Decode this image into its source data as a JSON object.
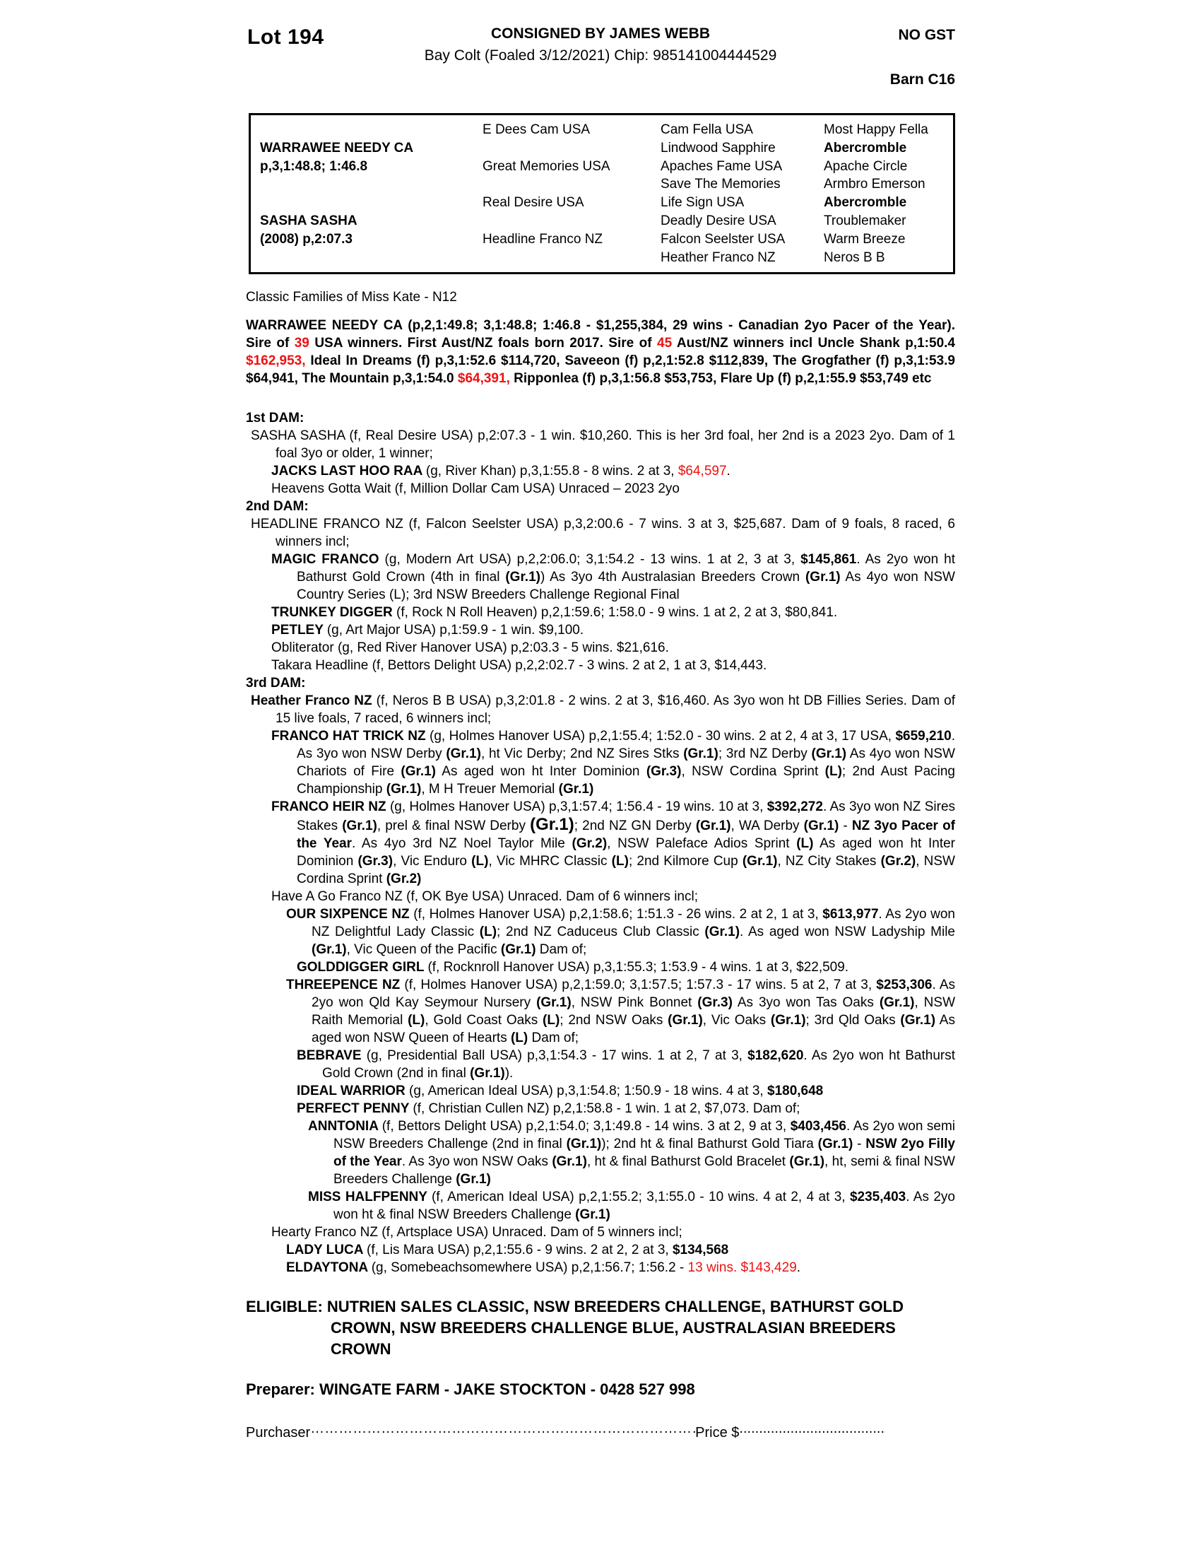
{
  "colors": {
    "red": "#ed1111",
    "text": "#000000",
    "page_bg": "#ffffff"
  },
  "header": {
    "lot": "Lot 194",
    "consigned": "CONSIGNED BY JAMES WEBB",
    "gst": "NO GST",
    "foaled": "Bay Colt (Foaled 3/12/2021) Chip: 985141004444529",
    "barn": "Barn C16"
  },
  "pedigree_table": {
    "sire": {
      "name": "WARRAWEE NEEDY CA",
      "record": "p,3,1:48.8; 1:46.8"
    },
    "dam": {
      "name": "SASHA SASHA",
      "record": "(2008) p,2:07.3"
    },
    "gen2": [
      "E Dees Cam USA",
      "Great Memories USA",
      "Real Desire USA",
      "Headline Franco NZ"
    ],
    "gen3": [
      "Cam Fella USA",
      "Lindwood Sapphire",
      "Apaches Fame USA",
      "Save The Memories",
      "Life Sign USA",
      "Deadly Desire USA",
      "Falcon Seelster USA",
      "Heather Franco NZ"
    ],
    "gen4": [
      {
        "t": "Most Happy Fella"
      },
      {
        "t": "Abercromble",
        "b": 1
      },
      {
        "t": "Apache Circle"
      },
      {
        "t": "Armbro Emerson"
      },
      {
        "t": "Abercromble",
        "b": 1
      },
      {
        "t": "Troublemaker"
      },
      {
        "t": "Warm Breeze"
      },
      {
        "t": "Neros B B"
      }
    ]
  },
  "family_note": "Classic Families of Miss Kate - N12",
  "paragraphs": [
    {
      "name": "sire-summary",
      "kind": "sire",
      "level": "none",
      "segs": [
        {
          "t": "WARRAWEE NEEDY CA (p,2,1:49.8; 3,1:48.8; 1:46.8 - $1,255,384, 29 wins - Canadian 2yo Pacer of the Year). Sire of "
        },
        {
          "t": "39",
          "r": 1
        },
        {
          "t": " USA winners. First Aust/NZ foals born 2017. Sire of "
        },
        {
          "t": "45",
          "r": 1
        },
        {
          "t": " Aust/NZ winners incl Uncle Shank p,1:50.4 "
        },
        {
          "t": "$162,953,",
          "r": 1
        },
        {
          "t": " Ideal In Dreams (f) p,3,1:52.6 $114,720, Saveeon (f) p,2,1:52.8 $112,839, The Grogfather (f) p,3,1:53.9 $64,941, The Mountain p,3,1:54.0 "
        },
        {
          "t": "$64,391,",
          "r": 1
        },
        {
          "t": " Ripponlea (f) p,3,1:56.8 $53,753, Flare Up (f) p,2,1:55.9 $53,749 etc"
        }
      ]
    },
    {
      "name": "first-dam-heading",
      "kind": "heading",
      "level": "none",
      "segs": [
        {
          "t": "1st DAM:",
          "b": 1
        }
      ]
    },
    {
      "name": "mare-sasha-sasha",
      "kind": "entry",
      "level": "dam",
      "segs": [
        {
          "t": "SASHA SASHA (f, Real Desire USA) p,2:07.3 - 1 win. $10,260. This is her 3rd foal, her 2nd is a 2023 2yo. Dam of 1 foal 3yo or older, 1 winner;"
        }
      ]
    },
    {
      "name": "foal-jacks-last-hoo-raa",
      "kind": "entry",
      "level": "foal",
      "segs": [
        {
          "t": "JACKS LAST HOO RAA ",
          "b": 1
        },
        {
          "t": "(g, River Khan) p,3,1:55.8 - 8 wins. 2 at 3, "
        },
        {
          "t": "$64,597",
          "r": 1
        },
        {
          "t": "."
        }
      ]
    },
    {
      "name": "foal-heavens-gotta-wait",
      "kind": "entry",
      "level": "foal",
      "segs": [
        {
          "t": "Heavens Gotta Wait (f, Million Dollar Cam USA) Unraced – 2023 2yo"
        }
      ]
    },
    {
      "name": "second-dam-heading",
      "kind": "heading",
      "level": "none",
      "segs": [
        {
          "t": "2nd DAM:",
          "b": 1
        }
      ]
    },
    {
      "name": "mare-headline-franco",
      "kind": "entry",
      "level": "dam",
      "segs": [
        {
          "t": "HEADLINE FRANCO NZ (f, Falcon Seelster USA) p,3,2:00.6 - 7 wins. 3 at 3, $25,687. Dam of 9 foals, 8 raced, 6 winners incl;"
        }
      ]
    },
    {
      "name": "foal-magic-franco",
      "kind": "entry",
      "level": "foal",
      "segs": [
        {
          "t": "MAGIC FRANCO ",
          "b": 1
        },
        {
          "t": "(g, Modern Art USA) p,2,2:06.0; 3,1:54.2 - 13 wins. 1 at 2, 3 at 3, "
        },
        {
          "t": "$145,861",
          "b": 1
        },
        {
          "t": ". As 2yo won ht Bathurst Gold Crown (4th in final "
        },
        {
          "t": "(Gr.1)",
          "b": 1
        },
        {
          "t": ") As 3yo 4th Australasian Breeders Crown "
        },
        {
          "t": "(Gr.1)",
          "b": 1
        },
        {
          "t": " As 4yo won NSW Country Series (L); 3rd NSW Breeders Challenge Regional Final"
        }
      ]
    },
    {
      "name": "foal-trunkey-digger",
      "kind": "entry",
      "level": "foal",
      "segs": [
        {
          "t": "TRUNKEY DIGGER ",
          "b": 1
        },
        {
          "t": "(f, Rock N Roll Heaven) p,2,1:59.6; 1:58.0 - 9 wins. 1 at 2, 2 at 3, $80,841."
        }
      ]
    },
    {
      "name": "foal-petley",
      "kind": "entry",
      "level": "foal",
      "segs": [
        {
          "t": "PETLEY ",
          "b": 1
        },
        {
          "t": "(g, Art Major USA) p,1:59.9 - 1 win. $9,100."
        }
      ]
    },
    {
      "name": "foal-obliterator",
      "kind": "entry",
      "level": "foal",
      "segs": [
        {
          "t": "Obliterator (g, Red River Hanover USA) p,2:03.3 - 5 wins. $21,616."
        }
      ]
    },
    {
      "name": "foal-takara-headline",
      "kind": "entry",
      "level": "foal",
      "segs": [
        {
          "t": "Takara Headline (f, Bettors Delight USA) p,2,2:02.7 - 3 wins. 2 at 2, 1 at 3, $14,443."
        }
      ]
    },
    {
      "name": "third-dam-heading",
      "kind": "heading",
      "level": "none",
      "segs": [
        {
          "t": "3rd DAM:",
          "b": 1
        }
      ]
    },
    {
      "name": "mare-heather-franco",
      "kind": "entry",
      "level": "dam",
      "segs": [
        {
          "t": "Heather Franco NZ ",
          "b": 1
        },
        {
          "t": "(f, Neros B B USA) p,3,2:01.8 - 2 wins. 2 at 3, $16,460. As 3yo won ht DB Fillies Series. Dam of 15 live foals, 7 raced, 6 winners incl;"
        }
      ]
    },
    {
      "name": "foal-franco-hat-trick",
      "kind": "entry",
      "level": "foal",
      "segs": [
        {
          "t": "FRANCO HAT TRICK NZ ",
          "b": 1
        },
        {
          "t": "(g, Holmes Hanover USA) p,2,1:55.4; 1:52.0 - 30 wins. 2 at 2, 4 at 3, 17 USA, "
        },
        {
          "t": "$659,210",
          "b": 1
        },
        {
          "t": ". As 3yo won NSW Derby "
        },
        {
          "t": "(Gr.1)",
          "b": 1
        },
        {
          "t": ", ht Vic Derby; 2nd NZ Sires Stks "
        },
        {
          "t": "(Gr.1)",
          "b": 1
        },
        {
          "t": "; 3rd NZ Derby "
        },
        {
          "t": "(Gr.1)",
          "b": 1
        },
        {
          "t": " As 4yo won NSW Chariots of Fire "
        },
        {
          "t": "(Gr.1)",
          "b": 1
        },
        {
          "t": " As aged won ht Inter Dominion "
        },
        {
          "t": "(Gr.3)",
          "b": 1
        },
        {
          "t": ", NSW Cordina Sprint "
        },
        {
          "t": "(L)",
          "b": 1
        },
        {
          "t": "; 2nd Aust Pacing Championship "
        },
        {
          "t": "(Gr.1)",
          "b": 1
        },
        {
          "t": ", M H Treuer Memorial "
        },
        {
          "t": "(Gr.1)",
          "b": 1
        }
      ]
    },
    {
      "name": "foal-franco-heir",
      "kind": "entry",
      "level": "foal",
      "segs": [
        {
          "t": "FRANCO HEIR NZ ",
          "b": 1
        },
        {
          "t": "(g, Holmes Hanover USA) p,3,1:57.4; 1:56.4 - 19 wins. 10 at 3, "
        },
        {
          "t": "$392,272",
          "b": 1
        },
        {
          "t": ". As 3yo won NZ Sires Stakes "
        },
        {
          "t": "(Gr.1)",
          "b": 1
        },
        {
          "t": ", prel & final NSW Derby "
        },
        {
          "t": "(Gr.1)",
          "b": 1,
          "big": 1
        },
        {
          "t": "; 2nd NZ GN Derby "
        },
        {
          "t": "(Gr.1)",
          "b": 1
        },
        {
          "t": ", WA Derby "
        },
        {
          "t": "(Gr.1)",
          "b": 1
        },
        {
          "t": " - "
        },
        {
          "t": "NZ 3yo Pacer of the Year",
          "b": 1
        },
        {
          "t": ". As 4yo 3rd NZ Noel Taylor Mile "
        },
        {
          "t": "(Gr.2)",
          "b": 1
        },
        {
          "t": ", NSW Paleface Adios Sprint "
        },
        {
          "t": "(L)",
          "b": 1
        },
        {
          "t": " As aged won ht Inter Dominion "
        },
        {
          "t": "(Gr.3)",
          "b": 1
        },
        {
          "t": ", Vic Enduro "
        },
        {
          "t": "(L)",
          "b": 1
        },
        {
          "t": ", Vic MHRC Classic "
        },
        {
          "t": "(L)",
          "b": 1
        },
        {
          "t": "; 2nd Kilmore Cup "
        },
        {
          "t": "(Gr.1)",
          "b": 1
        },
        {
          "t": ", NZ City Stakes "
        },
        {
          "t": "(Gr.2)",
          "b": 1
        },
        {
          "t": ", NSW Cordina Sprint "
        },
        {
          "t": "(Gr.2)",
          "b": 1
        }
      ]
    },
    {
      "name": "foal-have-a-go-franco",
      "kind": "entry",
      "level": "foal",
      "segs": [
        {
          "t": "Have A Go Franco NZ (f, OK Bye USA) Unraced. Dam of 6 winners incl;"
        }
      ]
    },
    {
      "name": "foal-our-sixpence",
      "kind": "entry",
      "level": "g2",
      "segs": [
        {
          "t": "OUR SIXPENCE NZ ",
          "b": 1
        },
        {
          "t": "(f, Holmes Hanover USA) p,2,1:58.6; 1:51.3 - 26 wins. 2 at 2, 1 at 3, "
        },
        {
          "t": "$613,977",
          "b": 1
        },
        {
          "t": ". As 2yo won NZ Delightful Lady Classic "
        },
        {
          "t": "(L)",
          "b": 1
        },
        {
          "t": "; 2nd NZ Caduceus Club Classic "
        },
        {
          "t": "(Gr.1)",
          "b": 1
        },
        {
          "t": ". As aged won NSW Ladyship Mile "
        },
        {
          "t": "(Gr.1)",
          "b": 1
        },
        {
          "t": ", Vic Queen of the Pacific "
        },
        {
          "t": "(Gr.1)",
          "b": 1
        },
        {
          "t": " Dam of;"
        }
      ]
    },
    {
      "name": "foal-golddigger-girl",
      "kind": "entry",
      "level": "g3",
      "segs": [
        {
          "t": "GOLDDIGGER GIRL ",
          "b": 1
        },
        {
          "t": "(f, Rocknroll Hanover USA) p,3,1:55.3; 1:53.9 - 4 wins. 1 at 3, $22,509."
        }
      ]
    },
    {
      "name": "foal-threepence",
      "kind": "entry",
      "level": "g2",
      "segs": [
        {
          "t": "THREEPENCE NZ ",
          "b": 1
        },
        {
          "t": "(f, Holmes Hanover USA) p,2,1:59.0; 3,1:57.5; 1:57.3 - 17 wins. 5 at 2, 7 at 3, "
        },
        {
          "t": "$253,306",
          "b": 1
        },
        {
          "t": ". As 2yo won Qld Kay Seymour Nursery "
        },
        {
          "t": "(Gr.1)",
          "b": 1
        },
        {
          "t": ", NSW Pink Bonnet "
        },
        {
          "t": "(Gr.3)",
          "b": 1
        },
        {
          "t": " As 3yo won Tas Oaks "
        },
        {
          "t": "(Gr.1)",
          "b": 1
        },
        {
          "t": ", NSW Raith Memorial "
        },
        {
          "t": "(L)",
          "b": 1
        },
        {
          "t": ", Gold Coast Oaks "
        },
        {
          "t": "(L)",
          "b": 1
        },
        {
          "t": "; 2nd NSW Oaks "
        },
        {
          "t": "(Gr.1)",
          "b": 1
        },
        {
          "t": ", Vic Oaks "
        },
        {
          "t": "(Gr.1)",
          "b": 1
        },
        {
          "t": "; 3rd Qld Oaks "
        },
        {
          "t": "(Gr.1)",
          "b": 1
        },
        {
          "t": " As aged won NSW Queen of Hearts "
        },
        {
          "t": "(L)",
          "b": 1
        },
        {
          "t": " Dam of;"
        }
      ]
    },
    {
      "name": "foal-bebrave",
      "kind": "entry",
      "level": "g3",
      "segs": [
        {
          "t": "BEBRAVE ",
          "b": 1
        },
        {
          "t": "(g, Presidential Ball USA) p,3,1:54.3 - 17 wins. 1 at 2, 7 at 3, "
        },
        {
          "t": "$182,620",
          "b": 1
        },
        {
          "t": ". As 2yo won ht Bathurst Gold Crown (2nd in final "
        },
        {
          "t": "(Gr.1)",
          "b": 1
        },
        {
          "t": ")."
        }
      ]
    },
    {
      "name": "foal-ideal-warrior",
      "kind": "entry",
      "level": "g3",
      "segs": [
        {
          "t": "IDEAL WARRIOR ",
          "b": 1
        },
        {
          "t": "(g, American Ideal USA) p,3,1:54.8; 1:50.9 - 18 wins. 4 at 3, "
        },
        {
          "t": "$180,648",
          "b": 1
        }
      ]
    },
    {
      "name": "foal-perfect-penny",
      "kind": "entry",
      "level": "g3",
      "segs": [
        {
          "t": "PERFECT PENNY ",
          "b": 1
        },
        {
          "t": "(f, Christian Cullen NZ) p,2,1:58.8 - 1 win. 1 at 2, $7,073. Dam of;"
        }
      ]
    },
    {
      "name": "foal-anntonia",
      "kind": "entry",
      "level": "g4",
      "segs": [
        {
          "t": "ANNTONIA ",
          "b": 1
        },
        {
          "t": "(f, Bettors Delight USA) p,2,1:54.0; 3,1:49.8 - 14 wins. 3 at 2, 9 at 3, "
        },
        {
          "t": "$403,456",
          "b": 1
        },
        {
          "t": ". As 2yo won semi NSW Breeders Challenge (2nd in final "
        },
        {
          "t": "(Gr.1)",
          "b": 1
        },
        {
          "t": "); 2nd ht & final Bathurst Gold Tiara "
        },
        {
          "t": "(Gr.1)",
          "b": 1
        },
        {
          "t": " - "
        },
        {
          "t": "NSW 2yo Filly of the Year",
          "b": 1
        },
        {
          "t": ". As 3yo won NSW Oaks "
        },
        {
          "t": "(Gr.1)",
          "b": 1
        },
        {
          "t": ", ht & final Bathurst Gold Bracelet "
        },
        {
          "t": "(Gr.1)",
          "b": 1
        },
        {
          "t": ", ht, semi & final NSW Breeders Challenge "
        },
        {
          "t": "(Gr.1)",
          "b": 1
        }
      ]
    },
    {
      "name": "foal-miss-halfpenny",
      "kind": "entry",
      "level": "g4",
      "segs": [
        {
          "t": "MISS HALFPENNY ",
          "b": 1
        },
        {
          "t": "(f, American Ideal USA) p,2,1:55.2; 3,1:55.0 - 10 wins. 4 at 2, 4 at 3, "
        },
        {
          "t": "$235,403",
          "b": 1
        },
        {
          "t": ". As 2yo won ht & final NSW Breeders Challenge "
        },
        {
          "t": "(Gr.1)",
          "b": 1
        }
      ]
    },
    {
      "name": "foal-hearty-franco",
      "kind": "entry",
      "level": "foal",
      "segs": [
        {
          "t": "Hearty Franco NZ (f, Artsplace USA) Unraced. Dam of 5 winners incl;"
        }
      ]
    },
    {
      "name": "foal-lady-luca",
      "kind": "entry",
      "level": "g2",
      "segs": [
        {
          "t": "LADY LUCA ",
          "b": 1
        },
        {
          "t": "(f, Lis Mara USA) p,2,1:55.6 - 9 wins. 2 at 2, 2 at 3, "
        },
        {
          "t": "$134,568",
          "b": 1
        }
      ]
    },
    {
      "name": "foal-eldaytona",
      "kind": "entry",
      "level": "g2",
      "segs": [
        {
          "t": "ELDAYTONA ",
          "b": 1
        },
        {
          "t": "(g, Somebeachsomewhere USA) p,2,1:56.7; 1:56.2 - "
        },
        {
          "t": "13 wins. $143,429",
          "r": 1
        },
        {
          "t": "."
        }
      ]
    },
    {
      "name": "eligibility-statement",
      "kind": "eligible",
      "level": "none",
      "segs": [
        {
          "t": "ELIGIBLE: NUTRIEN SALES CLASSIC, NSW BREEDERS CHALLENGE, BATHURST GOLD CROWN, NSW BREEDERS CHALLENGE BLUE, AUSTRALASIAN BREEDERS CROWN"
        }
      ]
    },
    {
      "name": "preparer-line",
      "kind": "preparer",
      "level": "none",
      "segs": [
        {
          "t": "Preparer: WINGATE FARM - JAKE STOCKTON - 0428 527 998"
        }
      ]
    }
  ],
  "footer": {
    "purchaser_label": "Purchaser",
    "dots_long": "………………………………………………………………………………",
    "price_label": "Price $",
    "dots_short": "............................................"
  }
}
